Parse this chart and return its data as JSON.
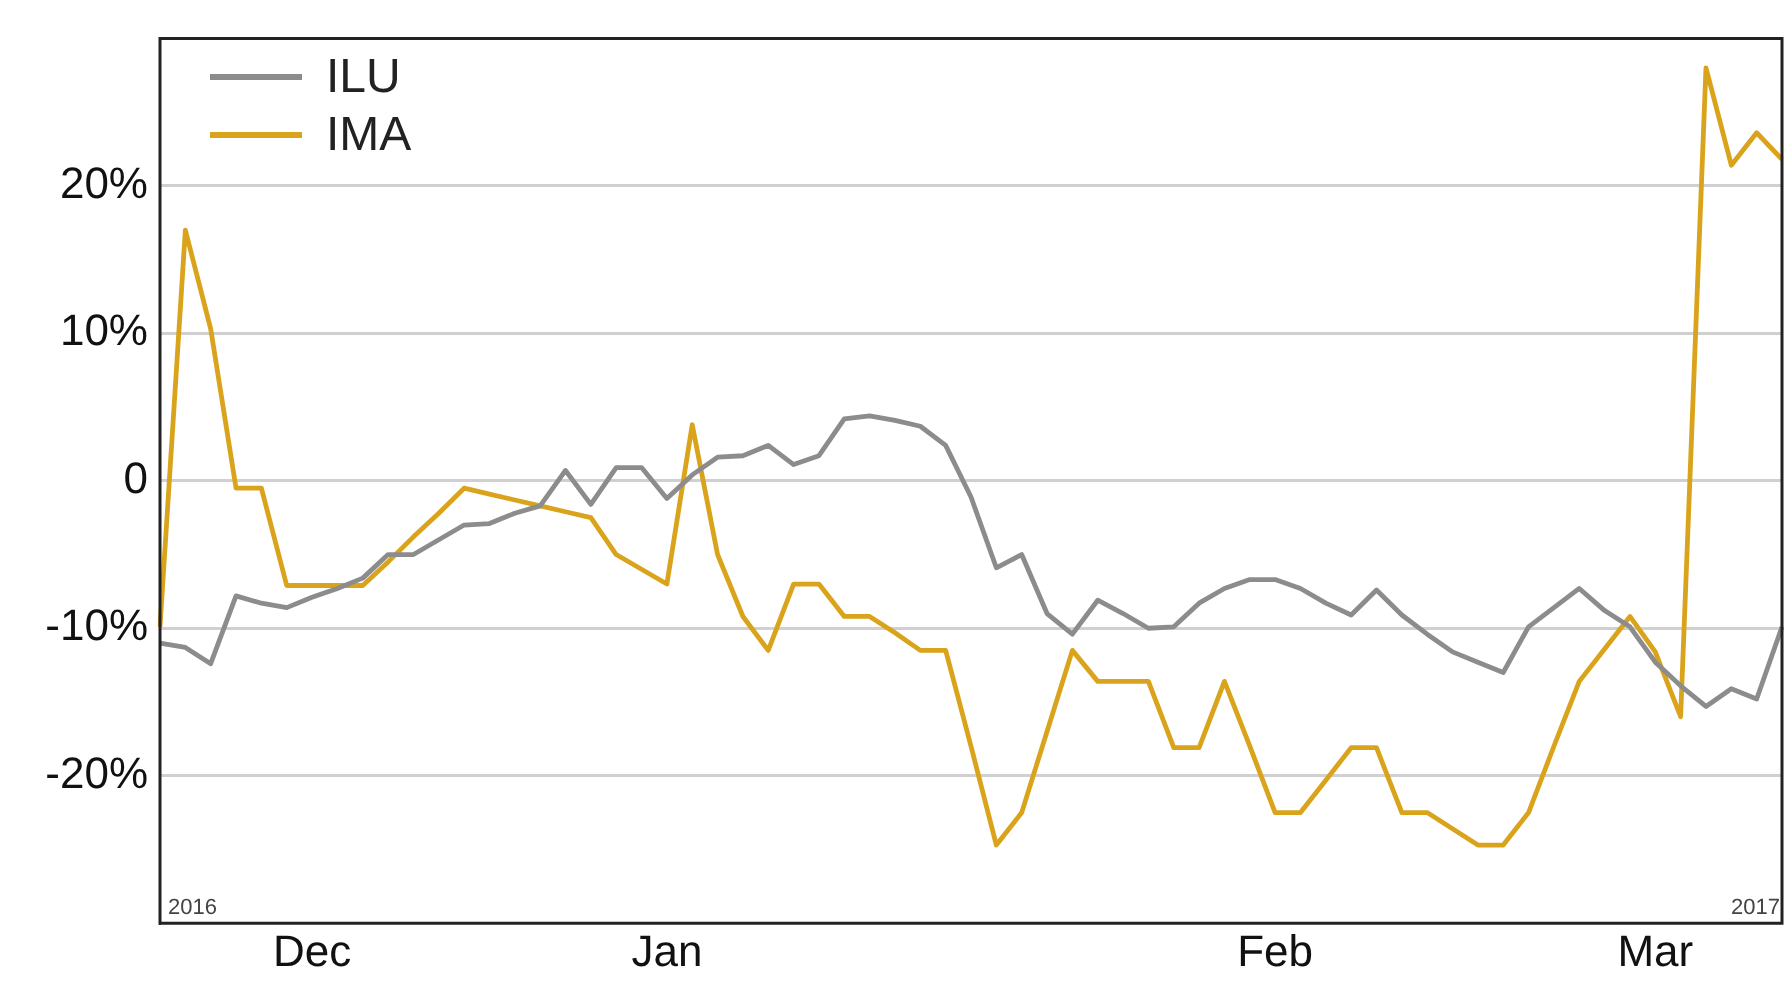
{
  "chart_data": {
    "type": "line",
    "categories": [
      null,
      null,
      null,
      null,
      null,
      null,
      "Dec",
      null,
      null,
      null,
      null,
      null,
      null,
      null,
      null,
      null,
      null,
      null,
      null,
      null,
      "Jan",
      null,
      null,
      null,
      null,
      null,
      null,
      null,
      null,
      null,
      null,
      null,
      null,
      null,
      null,
      null,
      null,
      null,
      null,
      null,
      null,
      null,
      null,
      null,
      "Feb",
      null,
      null,
      null,
      null,
      null,
      null,
      null,
      null,
      null,
      null,
      null,
      null,
      null,
      null,
      "Mar",
      null,
      null,
      null,
      null,
      null
    ],
    "series": [
      {
        "name": "ILU",
        "color": "#8c8c8c",
        "values": [
          -11.0,
          -11.3,
          -12.4,
          -7.8,
          -8.3,
          -8.6,
          -7.9,
          -7.3,
          -6.6,
          -5.0,
          -5.0,
          -4.0,
          -3.0,
          -2.9,
          -2.2,
          -1.7,
          0.7,
          -1.6,
          0.9,
          0.9,
          -1.2,
          0.4,
          1.6,
          1.7,
          2.4,
          1.1,
          1.7,
          4.2,
          4.4,
          4.1,
          3.7,
          2.4,
          -1.1,
          -5.9,
          -5.0,
          -9.0,
          -10.4,
          -8.1,
          -9.0,
          -10.0,
          -9.9,
          -8.3,
          -7.3,
          -6.7,
          -6.7,
          -7.3,
          -8.3,
          -9.1,
          -7.4,
          -9.1,
          -10.4,
          -11.6,
          -12.3,
          -13.0,
          -9.9,
          -8.6,
          -7.3,
          -8.8,
          -9.9,
          -12.3,
          -13.9,
          -15.3,
          -14.1,
          -14.8,
          -9.9
        ]
      },
      {
        "name": "IMA",
        "color": "#d9a41c",
        "values": [
          -9.9,
          17.0,
          10.3,
          -0.5,
          -0.5,
          -7.1,
          -7.1,
          -7.1,
          -7.1,
          -5.5,
          -3.8,
          -2.2,
          -0.5,
          -0.9,
          -1.3,
          -1.7,
          -2.1,
          -2.5,
          -5.0,
          -6.0,
          -7.0,
          3.8,
          -5.0,
          -9.2,
          -11.5,
          -7.0,
          -7.0,
          -9.2,
          -9.2,
          -10.3,
          -11.5,
          -11.5,
          -18.0,
          -24.7,
          -22.5,
          -17.0,
          -11.5,
          -13.6,
          -13.6,
          -13.6,
          -18.1,
          -18.1,
          -13.6,
          -18.0,
          -22.5,
          -22.5,
          -20.3,
          -18.1,
          -18.1,
          -22.5,
          -22.5,
          -23.6,
          -24.7,
          -24.7,
          -22.5,
          -18.0,
          -13.6,
          -11.4,
          -9.2,
          -11.6,
          -16.0,
          28.0,
          21.4,
          23.6,
          21.8
        ]
      }
    ],
    "ylim": [
      -30,
      30
    ],
    "yticks": [
      {
        "value": -20,
        "label": "-20%"
      },
      {
        "value": -10,
        "label": "-10%"
      },
      0,
      {
        "value": 10,
        "label": "10%"
      },
      {
        "value": 20,
        "label": "20%"
      }
    ],
    "grid": "y",
    "legend": "top left",
    "marker": "none",
    "line_style": "solid",
    "annotations": [
      "2016",
      "2017"
    ]
  }
}
